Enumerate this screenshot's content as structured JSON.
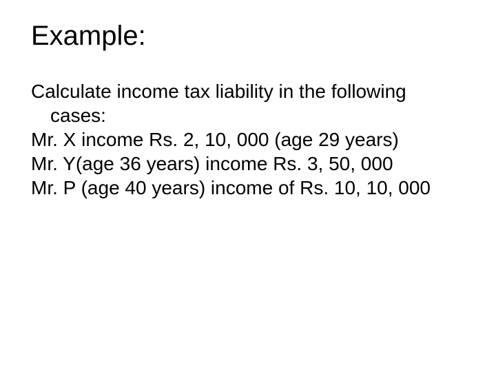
{
  "title": "Example:",
  "lines": [
    "Calculate income tax liability in the following",
    "cases:",
    "Mr. X income Rs. 2, 10, 000 (age 29 years)",
    "Mr. Y(age 36 years) income Rs. 3, 50, 000",
    "Mr. P (age 40 years) income of Rs. 10, 10, 000"
  ],
  "colors": {
    "background": "#ffffff",
    "text": "#000000"
  },
  "typography": {
    "title_fontsize": 40,
    "body_fontsize": 28,
    "font_family": "Arial"
  }
}
